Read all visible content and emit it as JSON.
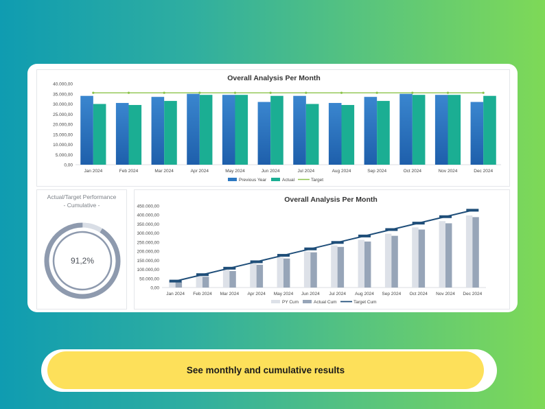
{
  "banner": {
    "text": "See monthly and cumulative results"
  },
  "colors": {
    "previous_year": "#2c78c2",
    "actual": "#1bae93",
    "target": "#8bc34a",
    "py_cum": "#dde1e8",
    "actual_cum": "#97a5b8",
    "target_cum": "#1f4e79",
    "donut_main": "#8e9aae",
    "donut_rest": "#d9dee6"
  },
  "chart_data": [
    {
      "type": "bar",
      "title": "Overall Analysis Per Month",
      "categories": [
        "Jan 2024",
        "Feb 2024",
        "Mar 2024",
        "Apr 2024",
        "May 2024",
        "Jun 2024",
        "Jul 2024",
        "Aug 2024",
        "Sep 2024",
        "Oct 2024",
        "Nov 2024",
        "Dec 2024"
      ],
      "series": [
        {
          "name": "Previous Year",
          "kind": "bar",
          "values": [
            34000,
            30500,
            33500,
            35000,
            34500,
            31000,
            34000,
            30500,
            33500,
            35000,
            34500,
            31000
          ]
        },
        {
          "name": "Actual",
          "kind": "bar",
          "values": [
            30000,
            29500,
            31500,
            34500,
            34500,
            34000,
            30000,
            29500,
            31500,
            34500,
            34500,
            34000
          ]
        },
        {
          "name": "Target",
          "kind": "line",
          "values": [
            35500,
            35500,
            35500,
            35500,
            35500,
            35500,
            35500,
            35500,
            35500,
            35500,
            35500,
            35500
          ]
        }
      ],
      "y_ticks": [
        "0,00",
        "5.000,00",
        "10.000,00",
        "15.000,00",
        "20.000,00",
        "25.000,00",
        "30.000,00",
        "35.000,00",
        "40.000,00"
      ],
      "ylim": [
        0,
        40000
      ],
      "legend_position": "bottom"
    },
    {
      "type": "donut",
      "title": "Actual/Target Performance",
      "subtitle": "- Cumulative -",
      "value_label": "91,2%",
      "value": 0.912
    },
    {
      "type": "bar",
      "title": "Overall Analysis Per Month",
      "categories": [
        "Jan 2024",
        "Feb 2024",
        "Mar 2024",
        "Apr 2024",
        "May 2024",
        "Jun 2024",
        "Jul 2024",
        "Aug 2024",
        "Sep 2024",
        "Oct 2024",
        "Nov 2024",
        "Dec 2024"
      ],
      "series": [
        {
          "name": "PY Cum",
          "kind": "bar",
          "values": [
            34000,
            64500,
            98000,
            133000,
            167500,
            198500,
            232500,
            263000,
            296500,
            331500,
            366000,
            397000
          ]
        },
        {
          "name": "Actual Cum",
          "kind": "bar",
          "values": [
            30000,
            59500,
            91000,
            125500,
            160000,
            194000,
            224000,
            253500,
            285000,
            319500,
            354000,
            388000
          ]
        },
        {
          "name": "Target Cum",
          "kind": "line",
          "values": [
            35500,
            71000,
            106500,
            142000,
            177500,
            213000,
            248500,
            284000,
            319500,
            355000,
            390500,
            426000
          ]
        }
      ],
      "y_ticks": [
        "0,00",
        "50.000,00",
        "100.000,00",
        "150.000,00",
        "200.000,00",
        "250.000,00",
        "300.000,00",
        "350.000,00",
        "400.000,00",
        "450.000,00"
      ],
      "ylim": [
        0,
        450000
      ],
      "legend_position": "bottom"
    }
  ]
}
